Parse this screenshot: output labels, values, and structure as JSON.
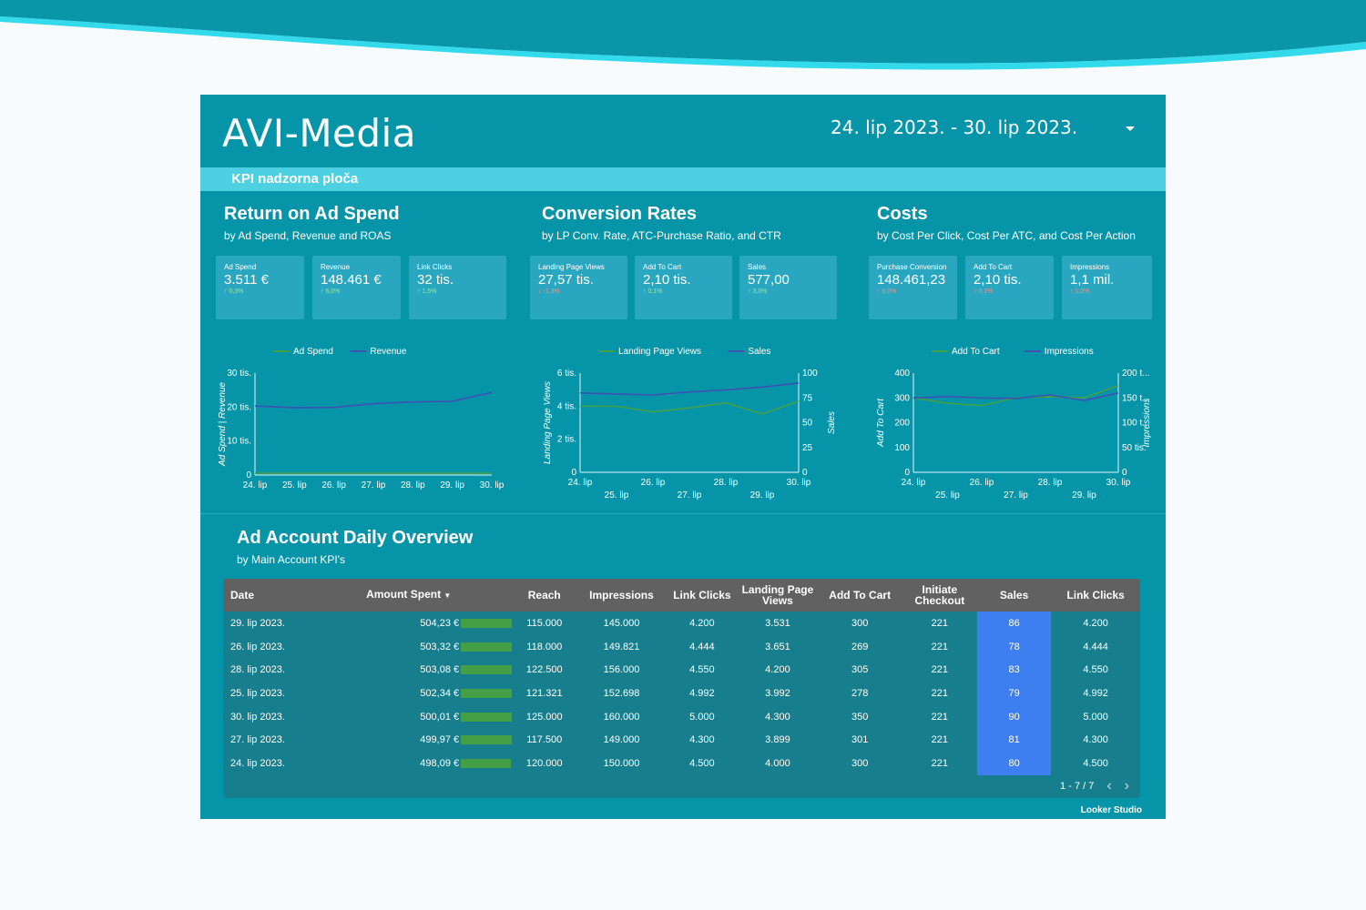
{
  "app": {
    "title": "AVI-Media",
    "date_range": "24. lip 2023. - 30. lip 2023.",
    "header_bar": "KPI nadzorna ploča",
    "brand": "Looker Studio"
  },
  "sections": [
    {
      "title": "Return on Ad Spend",
      "subtitle": "by Ad Spend, Revenue and ROAS",
      "kpis": [
        {
          "label": "Ad Spend",
          "value": "3.511 €",
          "delta": "↑ 0,3%",
          "trend": "up"
        },
        {
          "label": "Revenue",
          "value": "148.461 €",
          "delta": "↑ 6,0%",
          "trend": "up"
        },
        {
          "label": "Link Clicks",
          "value": "32 tis.",
          "delta": "↑ 1,5%",
          "trend": "up"
        }
      ]
    },
    {
      "title": "Conversion Rates",
      "subtitle": "by LP Conv. Rate, ATC-Purchase Ratio, and CTR",
      "kpis": [
        {
          "label": "Landing Page Views",
          "value": "27,57 tis.",
          "delta": "↓ -1,3%",
          "trend": "down"
        },
        {
          "label": "Add To Cart",
          "value": "2,10 tis.",
          "delta": "↑ 0,1%",
          "trend": "up"
        },
        {
          "label": "Sales",
          "value": "577,00",
          "delta": "↑ 3,0%",
          "trend": "up"
        }
      ]
    },
    {
      "title": "Costs",
      "subtitle": "by Cost Per Click, Cost Per ATC, and Cost Per Action",
      "kpis": [
        {
          "label": "Purchase Conversion Value",
          "value": "148.461,23",
          "delta": "↑ 6,0%",
          "trend": "down"
        },
        {
          "label": "Add To Cart",
          "value": "2,10 tis.",
          "delta": "↑ 0,1%",
          "trend": "down"
        },
        {
          "label": "Impressions",
          "value": "1,1 mil.",
          "delta": "↑ 1,2%",
          "trend": "down"
        }
      ]
    }
  ],
  "chart_data": [
    {
      "type": "line",
      "x": [
        "24. lip",
        "25. lip",
        "26. lip",
        "27. lip",
        "28. lip",
        "29. lip",
        "30. lip"
      ],
      "x_ticks": [
        "24. lip",
        "25. lip",
        "26. lip",
        "27. lip",
        "28. lip",
        "29. lip",
        "30. lip"
      ],
      "x_ticks_row2": [],
      "ylabel": "Ad Spend | Revenue",
      "ylim": [
        0,
        30000
      ],
      "y_ticks": [
        "0",
        "10 tis.",
        "20 tis.",
        "30 tis."
      ],
      "series": [
        {
          "name": "Ad Spend",
          "color": "#43a047",
          "axis": "left",
          "values": [
            498,
            502,
            503,
            500,
            503,
            504,
            500
          ]
        },
        {
          "name": "Revenue",
          "color": "#3f51b5",
          "axis": "left",
          "values": [
            20300,
            19800,
            19900,
            21000,
            21500,
            21700,
            24300
          ]
        }
      ]
    },
    {
      "type": "line",
      "x": [
        "24. lip",
        "25. lip",
        "26. lip",
        "27. lip",
        "28. lip",
        "29. lip",
        "30. lip"
      ],
      "x_ticks": [
        "24. lip",
        "",
        "26. lip",
        "",
        "28. lip",
        "",
        "30. lip"
      ],
      "x_ticks_row2": [
        "",
        "25. lip",
        "",
        "27. lip",
        "",
        "29. lip",
        ""
      ],
      "ylabel": "Landing Page Views",
      "ylim": [
        0,
        6000
      ],
      "y_ticks": [
        "0",
        "2 tis.",
        "4 tis.",
        "6 tis."
      ],
      "y2label": "Sales",
      "y2lim": [
        0,
        100
      ],
      "y2_ticks": [
        "0",
        "25",
        "50",
        "75",
        "100"
      ],
      "series": [
        {
          "name": "Landing Page Views",
          "color": "#43a047",
          "axis": "left",
          "values": [
            4000,
            3992,
            3651,
            3899,
            4200,
            3531,
            4300
          ]
        },
        {
          "name": "Sales",
          "color": "#3f51b5",
          "axis": "right",
          "values": [
            80,
            79,
            78,
            81,
            83,
            86,
            90
          ]
        }
      ]
    },
    {
      "type": "line",
      "x": [
        "24. lip",
        "25. lip",
        "26. lip",
        "27. lip",
        "28. lip",
        "29. lip",
        "30. lip"
      ],
      "x_ticks": [
        "24. lip",
        "",
        "26. lip",
        "",
        "28. lip",
        "",
        "30. lip"
      ],
      "x_ticks_row2": [
        "",
        "25. lip",
        "",
        "27. lip",
        "",
        "29. lip",
        ""
      ],
      "ylabel": "Add To Cart",
      "ylim": [
        0,
        400
      ],
      "y_ticks": [
        "0",
        "100",
        "200",
        "300",
        "400"
      ],
      "y2label": "Impressions",
      "y2lim": [
        0,
        200000
      ],
      "y2_ticks": [
        "0",
        "50 tis.",
        "100 t...",
        "150 t...",
        "200 t..."
      ],
      "series": [
        {
          "name": "Add To Cart",
          "color": "#43a047",
          "axis": "left",
          "values": [
            300,
            278,
            269,
            301,
            305,
            300,
            350
          ]
        },
        {
          "name": "Impressions",
          "color": "#3f51b5",
          "axis": "right",
          "values": [
            150000,
            152698,
            149821,
            149000,
            156000,
            145000,
            160000
          ]
        }
      ]
    }
  ],
  "overview": {
    "title": "Ad Account Daily Overview",
    "subtitle": "by Main Account KPI's",
    "columns": [
      "Date",
      "Amount Spent",
      "Reach",
      "Impressions",
      "Link Clicks",
      "Landing Page Views",
      "Add To Cart",
      "Initiate Checkout",
      "Sales",
      "Link Clicks"
    ],
    "sort_indicator": "▼",
    "amount_bar_fraction": [
      1.0,
      0.998,
      0.998,
      0.997,
      0.992,
      0.992,
      0.988
    ],
    "rows": [
      [
        "29. lip 2023.",
        "504,23 €",
        "115.000",
        "145.000",
        "4.200",
        "3.531",
        "300",
        "221",
        "86",
        "4.200"
      ],
      [
        "26. lip 2023.",
        "503,32 €",
        "118.000",
        "149.821",
        "4.444",
        "3.651",
        "269",
        "221",
        "78",
        "4.444"
      ],
      [
        "28. lip 2023.",
        "503,08 €",
        "122.500",
        "156.000",
        "4.550",
        "4.200",
        "305",
        "221",
        "83",
        "4.550"
      ],
      [
        "25. lip 2023.",
        "502,34 €",
        "121.321",
        "152.698",
        "4.992",
        "3.992",
        "278",
        "221",
        "79",
        "4.992"
      ],
      [
        "30. lip 2023.",
        "500,01 €",
        "125.000",
        "160.000",
        "5.000",
        "4.300",
        "350",
        "221",
        "90",
        "5.000"
      ],
      [
        "27. lip 2023.",
        "499,97 €",
        "117.500",
        "149.000",
        "4.300",
        "3.899",
        "301",
        "221",
        "81",
        "4.300"
      ],
      [
        "24. lip 2023.",
        "498,09 €",
        "120.000",
        "150.000",
        "4.500",
        "4.000",
        "300",
        "221",
        "80",
        "4.500"
      ]
    ],
    "pagination": "1 - 7 / 7",
    "prev_icon": "chevron-left-icon",
    "next_icon": "chevron-right-icon"
  },
  "colors": {
    "background": "#0695a8",
    "header_bar": "#4dd0e1",
    "kpi_card": "#2aa7c0",
    "table_header": "#616161",
    "sales_highlight": "#3d7ff1",
    "bar_green": "#43a047"
  }
}
